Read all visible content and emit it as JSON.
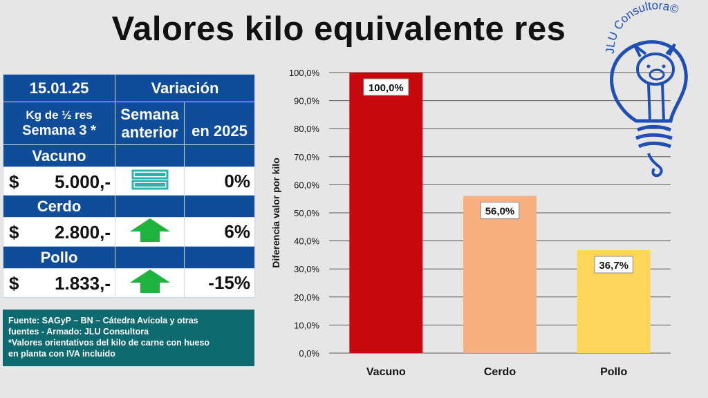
{
  "title": "Valores kilo equivalente res",
  "logo_text": "JLU Consultora©",
  "table": {
    "date": "15.01.25",
    "variation_header": "Variación",
    "kg_line1": "Kg de ½ res",
    "kg_line2": "Semana 3 *",
    "col_week_line1": "Semana",
    "col_week_line2": "anterior",
    "col_year": "en 2025",
    "rows": [
      {
        "name": "Vacuno",
        "currency": "$",
        "price": "5.000,-",
        "indicator": "equal",
        "change_2025": "0%"
      },
      {
        "name": "Cerdo",
        "currency": "$",
        "price": "2.800,-",
        "indicator": "up",
        "change_2025": "6%"
      },
      {
        "name": "Pollo",
        "currency": "$",
        "price": "1.833,-",
        "indicator": "up",
        "change_2025": "-15%"
      }
    ]
  },
  "notes": [
    "Fuente: SAGyP  – BN – Cátedra Avícola y otras",
    "fuentes - Armado:  JLU Consultora",
    "*Valores orientativos del kilo de carne con hueso",
    "en planta con IVA  incluido"
  ],
  "colors": {
    "table_blue": "#0f4c9a",
    "notes_teal": "#0d6a6e",
    "indicator_equal": "#2bb3ad",
    "indicator_up": "#1eb33c",
    "negative": "#e8102a"
  },
  "chart_data": {
    "type": "bar",
    "categories": [
      "Vacuno",
      "Cerdo",
      "Pollo"
    ],
    "values": [
      100.0,
      56.0,
      36.7
    ],
    "data_labels": [
      "100,0%",
      "56,0%",
      "36,7%"
    ],
    "colors": [
      "#c8080f",
      "#f9b080",
      "#ffd659"
    ],
    "title": "",
    "xlabel": "",
    "ylabel": "Diferencia valor por kilo",
    "ylim": [
      0,
      100
    ],
    "yticks": [
      "0,0%",
      "10,0%",
      "20,0%",
      "30,0%",
      "40,0%",
      "50,0%",
      "60,0%",
      "70,0%",
      "80,0%",
      "90,0%",
      "100,0%"
    ],
    "ytick_values": [
      0,
      10,
      20,
      30,
      40,
      50,
      60,
      70,
      80,
      90,
      100
    ],
    "grid": true,
    "legend": "none"
  }
}
